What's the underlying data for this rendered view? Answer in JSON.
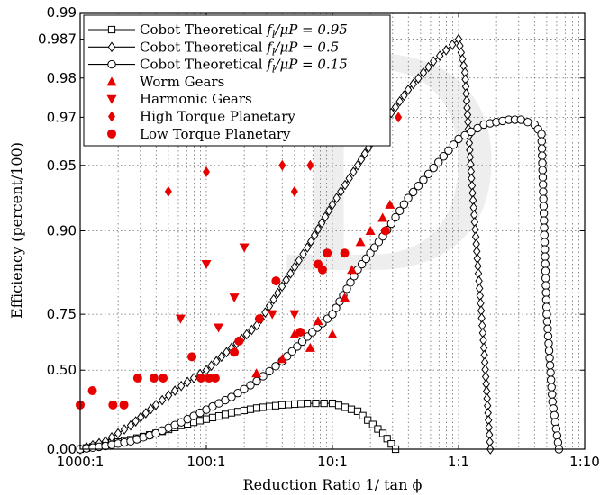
{
  "chart_data": {
    "type": "scatter",
    "xlabel": "Reduction Ratio 1/ tan ϕ",
    "ylabel": "Efficiency (percent/100)",
    "x_axis": {
      "scale": "log",
      "direction": "ratio decreases to the right",
      "range_x_over_1": [
        1000,
        0.1
      ],
      "ticks": [
        {
          "ratio": 1000,
          "label": "1000:1"
        },
        {
          "ratio": 100,
          "label": "100:1"
        },
        {
          "ratio": 10,
          "label": "10:1"
        },
        {
          "ratio": 1,
          "label": "1:1"
        },
        {
          "ratio": 0.1,
          "label": "1:10"
        }
      ]
    },
    "y_axis": {
      "scale": "nonlinear, stretched near 1 (approximately -log10(1 - efficiency))",
      "range": [
        0,
        0.99
      ],
      "ticks": [
        {
          "value": 0.0,
          "label": "0.00"
        },
        {
          "value": 0.5,
          "label": "0.50"
        },
        {
          "value": 0.75,
          "label": "0.75"
        },
        {
          "value": 0.9,
          "label": "0.90"
        },
        {
          "value": 0.95,
          "label": "0.95"
        },
        {
          "value": 0.97,
          "label": "0.97"
        },
        {
          "value": 0.98,
          "label": "0.98"
        },
        {
          "value": 0.987,
          "label": "0.987"
        },
        {
          "value": 0.99,
          "label": "0.99"
        }
      ]
    },
    "grid": true,
    "legend_position": "top-left",
    "series": [
      {
        "name": "Cobot Theoretical f_l/μP = 0.95",
        "legend_main": "Cobot Theoretical ",
        "legend_var": "f",
        "legend_sub": "l",
        "legend_rest": "/μP = 0.95",
        "kind": "line",
        "marker": "square",
        "x_ratio": [
          1000,
          631,
          398,
          251,
          158,
          100,
          63.1,
          39.8,
          25.1,
          15.8,
          10,
          6.31,
          3.98,
          3.16
        ],
        "y": [
          0.0,
          0.03,
          0.06,
          0.1,
          0.15,
          0.19,
          0.23,
          0.26,
          0.28,
          0.29,
          0.29,
          0.24,
          0.1,
          0.0
        ]
      },
      {
        "name": "Cobot Theoretical f_l/μP = 0.5",
        "legend_main": "Cobot Theoretical ",
        "legend_var": "f",
        "legend_sub": "l",
        "legend_rest": "/μP = 0.5",
        "kind": "line",
        "marker": "diamond",
        "x_ratio": [
          1000,
          631,
          398,
          251,
          158,
          100,
          63.1,
          39.8,
          25.1,
          15.8,
          10,
          6.31,
          3.98,
          2.51,
          1.58,
          1.12,
          1.0,
          0.89,
          0.79,
          0.71,
          0.63,
          0.56
        ],
        "y": [
          0.0,
          0.05,
          0.15,
          0.28,
          0.4,
          0.5,
          0.6,
          0.7,
          0.8,
          0.87,
          0.92,
          0.95,
          0.967,
          0.977,
          0.983,
          0.986,
          0.987,
          0.981,
          0.94,
          0.85,
          0.6,
          0.0
        ]
      },
      {
        "name": "Cobot Theoretical f_l/μP = 0.15",
        "legend_main": "Cobot Theoretical ",
        "legend_var": "f",
        "legend_sub": "l",
        "legend_rest": "/μP = 0.15",
        "kind": "line",
        "marker": "circle",
        "x_ratio": [
          1000,
          631,
          398,
          251,
          158,
          100,
          63.1,
          39.8,
          25.1,
          15.8,
          10,
          6.31,
          3.98,
          2.51,
          1.58,
          1.0,
          0.63,
          0.4,
          0.32,
          0.25,
          0.22,
          0.2,
          0.18,
          0.16
        ],
        "y": [
          0.0,
          0.02,
          0.05,
          0.1,
          0.17,
          0.25,
          0.33,
          0.43,
          0.54,
          0.65,
          0.75,
          0.83,
          0.89,
          0.925,
          0.948,
          0.961,
          0.967,
          0.969,
          0.969,
          0.967,
          0.963,
          0.75,
          0.3,
          0.0
        ]
      },
      {
        "name": "Worm Gears",
        "kind": "scatter",
        "marker": "triangle-up",
        "x_ratio": [
          40,
          25,
          20,
          15,
          13,
          10,
          8,
          7,
          6,
          5,
          4,
          3.5
        ],
        "y": [
          0.48,
          0.55,
          0.66,
          0.6,
          0.72,
          0.66,
          0.78,
          0.83,
          0.88,
          0.9,
          0.91,
          0.92
        ]
      },
      {
        "name": "Harmonic Gears",
        "kind": "scatter",
        "marker": "triangle-down",
        "x_ratio": [
          160,
          100,
          80,
          50,
          60,
          30,
          20
        ],
        "y": [
          0.73,
          0.84,
          0.69,
          0.87,
          0.78,
          0.75,
          0.75
        ]
      },
      {
        "name": "High Torque Planetary",
        "kind": "scatter",
        "marker": "diamond-filled",
        "x_ratio": [
          200,
          100,
          25,
          20,
          15,
          3
        ],
        "y": [
          0.93,
          0.945,
          0.95,
          0.93,
          0.95,
          0.97
        ]
      },
      {
        "name": "Low Torque Planetary",
        "kind": "scatter",
        "marker": "circle-filled",
        "x_ratio": [
          1000,
          800,
          550,
          450,
          350,
          260,
          220,
          130,
          110,
          95,
          85,
          60,
          55,
          38,
          28,
          18,
          13,
          12,
          11,
          8,
          3.8
        ],
        "y": [
          0.28,
          0.37,
          0.28,
          0.28,
          0.45,
          0.45,
          0.45,
          0.56,
          0.45,
          0.45,
          0.45,
          0.58,
          0.63,
          0.73,
          0.81,
          0.67,
          0.84,
          0.83,
          0.86,
          0.86,
          0.9
        ]
      }
    ]
  }
}
